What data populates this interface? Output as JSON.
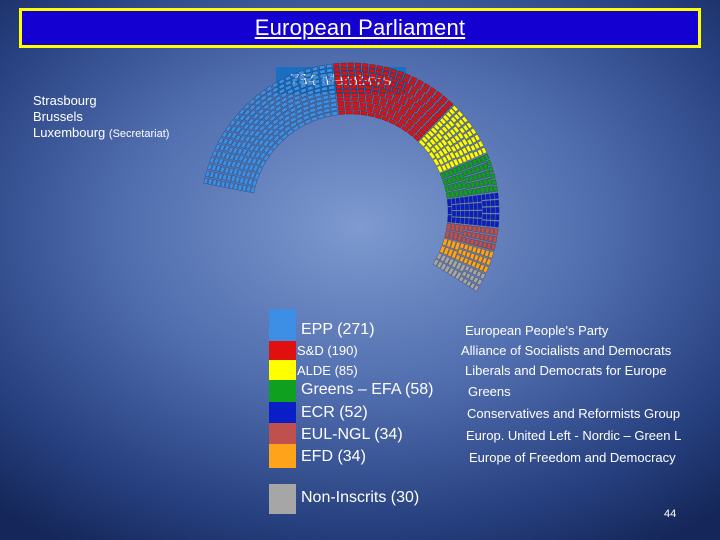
{
  "title": "European Parliament",
  "members_label": "754 Members",
  "cities": {
    "city1": "Strasbourg",
    "city2": "Brussels",
    "city3": "Luxembourg",
    "city3_note": "(Secretariat)"
  },
  "chart_data": {
    "type": "hemicycle",
    "total_seats": 754,
    "groups": [
      {
        "label": "EPP (271)",
        "description": "European People's Party",
        "seats": 271,
        "color": "#3d8fe6"
      },
      {
        "label": "S&D (190)",
        "description": "Alliance of Socialists and Democrats",
        "seats": 190,
        "color": "#e01010"
      },
      {
        "label": "ALDE (85)",
        "description": "Liberals and Democrats for Europe",
        "seats": 85,
        "color": "#ffff00"
      },
      {
        "label": "Greens – EFA (58)",
        "description": "Greens",
        "seats": 58,
        "color": "#10a020"
      },
      {
        "label": "ECR (52)",
        "description": "Conservatives and Reformists Group",
        "seats": 52,
        "color": "#0a1ec8"
      },
      {
        "label": "EUL-NGL (34)",
        "description": "Europ. United Left -  Nordic – Green L",
        "seats": 34,
        "color": "#c0504d"
      },
      {
        "label": "EFD (34)",
        "description": "Europe of Freedom and Democracy",
        "seats": 34,
        "color": "#ffa31a"
      },
      {
        "label": "Non-Inscrits (30)",
        "description": "",
        "seats": 30,
        "color": "#a6a6a6"
      }
    ]
  },
  "page_number": "44"
}
